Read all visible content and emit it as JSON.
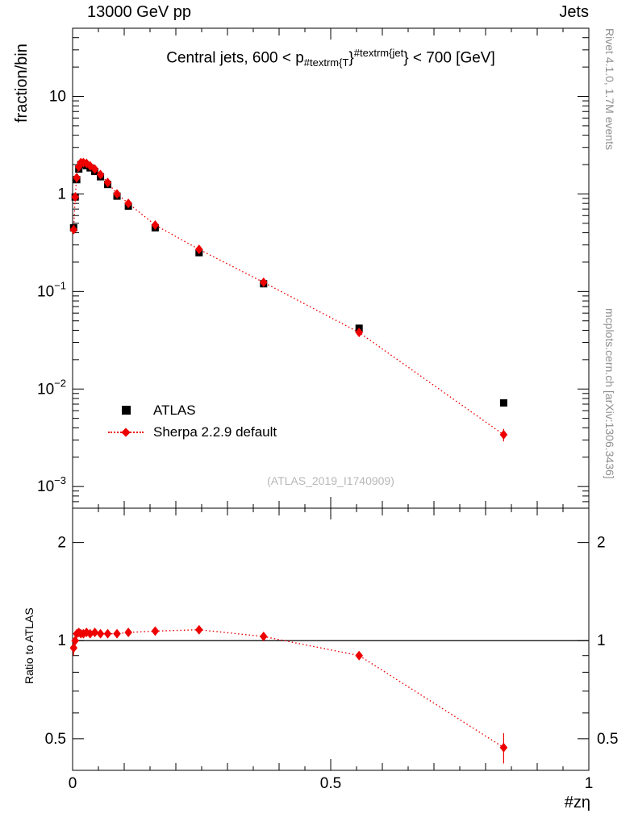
{
  "header": {
    "left": "13000 GeV pp",
    "right": "Jets"
  },
  "side_labels": {
    "rivet": "Rivet 4.1.0,  1.7M events",
    "mcplots": "mcplots.cern.ch [arXiv:1306.3436]"
  },
  "watermark": "(ATLAS_2019_I1740909)",
  "title_parts": {
    "pre": "Central jets, 600 < p",
    "sub": "#textrm{T",
    "brace": "}",
    "sup": "#textrm{jet",
    "post": "} < 700 [GeV]"
  },
  "axes": {
    "ylabel_top": "fraction/bin",
    "ylabel_ratio": "Ratio to ATLAS",
    "xlabel": "#zη"
  },
  "legend": {
    "atlas_label": "ATLAS",
    "sherpa_label": "Sherpa 2.2.9 default"
  },
  "colors": {
    "sherpa_red": "#ee0000",
    "atlas_black": "#000000",
    "watermark_gray": "#b7b7b7",
    "side_gray": "#8f8f8f"
  },
  "chart_data": [
    {
      "type": "scatter",
      "yscale": "log",
      "title": "Central jets, 600 < p_{#textrm{T}}^{#textrm{jet}} < 700 [GeV]",
      "xlabel": "#zη",
      "ylabel": "fraction/bin",
      "xlim": [
        0,
        1
      ],
      "ylim": [
        0.0006,
        50
      ],
      "grid": false,
      "legend_position": "left-middle",
      "x_ticks": [
        {
          "value": 0,
          "label": "0"
        },
        {
          "value": 0.5,
          "label": "0.5"
        },
        {
          "value": 1,
          "label": "1"
        }
      ],
      "y_ticks": [
        {
          "value": 10,
          "label": "10",
          "exp": ""
        },
        {
          "value": 1,
          "label": "1",
          "exp": ""
        },
        {
          "value": 0.1,
          "label": "10",
          "exp": "−1"
        },
        {
          "value": 0.01,
          "label": "10",
          "exp": "−2"
        },
        {
          "value": 0.001,
          "label": "10",
          "exp": "−3"
        }
      ],
      "series": [
        {
          "name": "ATLAS",
          "marker": "square",
          "color": "#000000",
          "line": "",
          "x": [
            0.002,
            0.005,
            0.008,
            0.012,
            0.016,
            0.021,
            0.027,
            0.034,
            0.043,
            0.054,
            0.068,
            0.086,
            0.108,
            0.16,
            0.245,
            0.37,
            0.555,
            0.835
          ],
          "y": [
            0.45,
            0.93,
            1.4,
            1.8,
            2.0,
            2.0,
            1.95,
            1.85,
            1.7,
            1.5,
            1.25,
            0.95,
            0.75,
            0.45,
            0.25,
            0.12,
            0.042,
            0.0072
          ]
        },
        {
          "name": "Sherpa 2.2.9 default",
          "marker": "diamond",
          "color": "#ee0000",
          "line": "dotted",
          "x": [
            0.002,
            0.005,
            0.008,
            0.012,
            0.016,
            0.021,
            0.027,
            0.034,
            0.043,
            0.054,
            0.068,
            0.086,
            0.108,
            0.16,
            0.245,
            0.37,
            0.555,
            0.835
          ],
          "y": [
            0.43,
            0.93,
            1.47,
            1.9,
            2.1,
            2.1,
            2.06,
            1.94,
            1.8,
            1.58,
            1.31,
            1.0,
            0.8,
            0.48,
            0.27,
            0.124,
            0.038,
            0.0034
          ],
          "yerr": [
            0.03,
            0.02,
            0.02,
            0.02,
            0.02,
            0.02,
            0.02,
            0.02,
            0.02,
            0.015,
            0.012,
            0.01,
            0.008,
            0.005,
            0.003,
            0.002,
            0.003,
            0.0005
          ]
        }
      ]
    },
    {
      "type": "ratio",
      "yscale": "log",
      "ylabel": "Ratio to ATLAS",
      "xlim": [
        0,
        1
      ],
      "ylim": [
        0.4,
        2.55
      ],
      "reference_line": 1,
      "y_ticks": [
        {
          "value": 0.5,
          "label": "0.5"
        },
        {
          "value": 1,
          "label": "1"
        },
        {
          "value": 2,
          "label": "2"
        }
      ],
      "y_minor_ticks": [
        0.4,
        0.6,
        0.7,
        0.8,
        0.9
      ],
      "series": [
        {
          "name": "Sherpa 2.2.9 default / ATLAS",
          "marker": "diamond",
          "color": "#ee0000",
          "line": "dotted",
          "x": [
            0.002,
            0.005,
            0.008,
            0.012,
            0.016,
            0.021,
            0.027,
            0.034,
            0.043,
            0.054,
            0.068,
            0.086,
            0.108,
            0.16,
            0.245,
            0.37,
            0.555,
            0.835
          ],
          "y": [
            0.95,
            1.0,
            1.05,
            1.06,
            1.05,
            1.05,
            1.06,
            1.05,
            1.06,
            1.05,
            1.05,
            1.05,
            1.06,
            1.07,
            1.08,
            1.03,
            0.9,
            0.47
          ],
          "yerr": [
            0.05,
            0.02,
            0.012,
            0.01,
            0.008,
            0.008,
            0.008,
            0.008,
            0.008,
            0.008,
            0.008,
            0.009,
            0.01,
            0.01,
            0.012,
            0.012,
            0.02,
            0.05
          ]
        }
      ]
    }
  ]
}
